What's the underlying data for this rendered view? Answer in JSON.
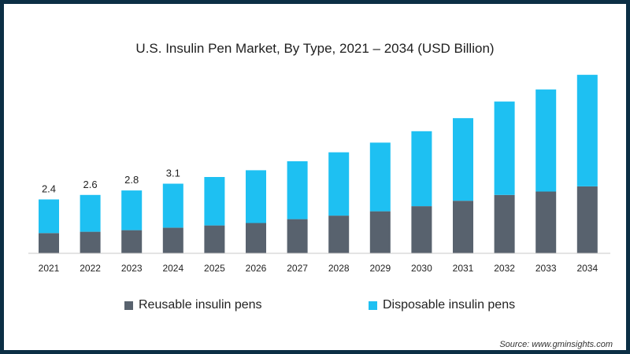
{
  "chart_data": {
    "type": "bar",
    "stacked": true,
    "title": "U.S. Insulin Pen Market, By Type, 2021 – 2034 (USD Billion)",
    "xlabel": "",
    "ylabel": "",
    "grid": false,
    "categories": [
      "2021",
      "2022",
      "2023",
      "2024",
      "2025",
      "2026",
      "2027",
      "2028",
      "2029",
      "2030",
      "2031",
      "2032",
      "2033",
      "2034"
    ],
    "series": [
      {
        "name": "Reusable insulin pens",
        "color": "#58626e",
        "values": [
          0.9,
          0.96,
          1.03,
          1.14,
          1.24,
          1.35,
          1.52,
          1.68,
          1.87,
          2.1,
          2.34,
          2.6,
          2.75,
          2.98
        ]
      },
      {
        "name": "Disposable insulin pens",
        "color": "#1ec0f2",
        "values": [
          1.5,
          1.64,
          1.77,
          1.96,
          2.16,
          2.35,
          2.58,
          2.82,
          3.06,
          3.34,
          3.68,
          4.16,
          4.55,
          4.97
        ]
      }
    ],
    "data_labels": [
      "2.4",
      "2.6",
      "2.8",
      "3.1"
    ],
    "ylim": [
      0,
      8.2
    ],
    "legend_position": "bottom",
    "source": "Source: www.gminsights.com"
  }
}
